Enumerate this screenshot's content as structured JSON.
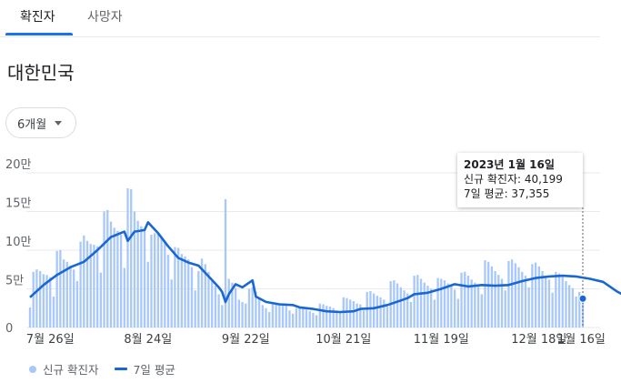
{
  "tabs": [
    {
      "label": "확진자",
      "active": true
    },
    {
      "label": "사망자",
      "active": false
    }
  ],
  "region_title": "대한민국",
  "period_select": {
    "label": "6개월"
  },
  "tooltip": {
    "date": "2023년 1월 16일",
    "new_cases": "신규 확진자: 40,199",
    "avg": "7일 평균: 37,355"
  },
  "legend": {
    "bars_label": "신규 확진자",
    "line_label": "7일 평균"
  },
  "colors": {
    "bar": "#a8c7fa",
    "line": "#1967d2",
    "grid": "#e8eaed",
    "accent": "#1a73e8"
  },
  "chart_data": {
    "type": "bar",
    "start_date": "2022-07-20",
    "y_tick_labels": [
      "0",
      "5만",
      "10만",
      "15만",
      "20만"
    ],
    "y_ticks": [
      0,
      50000,
      100000,
      150000,
      200000
    ],
    "ylim": [
      0,
      210000
    ],
    "x_tick_labels": [
      "7월 26일",
      "8월 24일",
      "9월 22일",
      "10월 21일",
      "11월 19일",
      "12월 18일",
      "1월 16일"
    ],
    "series": [
      {
        "name": "신규 확진자",
        "kind": "bar",
        "values": [
          26000,
          72000,
          75000,
          73000,
          69000,
          68000,
          65000,
          40000,
          99000,
          100000,
          88000,
          85000,
          80000,
          75000,
          60000,
          111000,
          119000,
          112000,
          108000,
          107000,
          105000,
          71000,
          150000,
          152000,
          137000,
          129000,
          125000,
          120000,
          77000,
          180000,
          179000,
          150000,
          138000,
          131000,
          125000,
          85000,
          120000,
          122000,
          121000,
          118000,
          109000,
          94000,
          62000,
          104000,
          103000,
          95000,
          92000,
          88000,
          78000,
          48000,
          73000,
          89000,
          82000,
          72000,
          60000,
          54000,
          43000,
          29000,
          166000,
          63000,
          58000,
          51000,
          36000,
          33000,
          31000,
          50000,
          52000,
          46000,
          38000,
          29000,
          25000,
          20000,
          32000,
          31000,
          30000,
          29000,
          28000,
          22000,
          18000,
          25000,
          26000,
          24000,
          23000,
          21000,
          19000,
          16000,
          31000,
          30000,
          28000,
          27000,
          25000,
          22000,
          20000,
          39000,
          38000,
          36000,
          34000,
          31000,
          30000,
          22000,
          46000,
          47000,
          44000,
          41000,
          39000,
          36000,
          27000,
          60000,
          61000,
          57000,
          52000,
          48000,
          44000,
          33000,
          67000,
          68000,
          63000,
          58000,
          54000,
          50000,
          36000,
          64000,
          63000,
          61000,
          57000,
          53000,
          49000,
          37000,
          71000,
          72000,
          67000,
          62000,
          58000,
          53000,
          43000,
          87000,
          85000,
          79000,
          73000,
          68000,
          63000,
          48000,
          86000,
          88000,
          83000,
          78000,
          72000,
          67000,
          52000,
          82000,
          84000,
          79000,
          73000,
          67000,
          62000,
          45000,
          72000,
          70000,
          65000,
          60000,
          55000,
          51000,
          40000,
          46000,
          40200
        ]
      },
      {
        "name": "7일 평균",
        "kind": "line",
        "points": [
          [
            0,
            39000
          ],
          [
            4,
            55000
          ],
          [
            8,
            68000
          ],
          [
            12,
            78000
          ],
          [
            16,
            85000
          ],
          [
            20,
            100000
          ],
          [
            24,
            117000
          ],
          [
            28,
            124000
          ],
          [
            29,
            112000
          ],
          [
            31,
            124000
          ],
          [
            34,
            126000
          ],
          [
            35,
            136000
          ],
          [
            38,
            122000
          ],
          [
            41,
            105000
          ],
          [
            44,
            90000
          ],
          [
            47,
            84000
          ],
          [
            50,
            80000
          ],
          [
            53,
            66000
          ],
          [
            56,
            52000
          ],
          [
            57,
            46000
          ],
          [
            58,
            33000
          ],
          [
            59,
            43000
          ],
          [
            61,
            56000
          ],
          [
            63,
            52000
          ],
          [
            66,
            61000
          ],
          [
            67,
            40000
          ],
          [
            70,
            33000
          ],
          [
            74,
            30000
          ],
          [
            78,
            29000
          ],
          [
            80,
            26000
          ],
          [
            84,
            24000
          ],
          [
            88,
            21000
          ],
          [
            92,
            20000
          ],
          [
            96,
            21000
          ],
          [
            98,
            24000
          ],
          [
            102,
            25000
          ],
          [
            106,
            29000
          ],
          [
            110,
            35000
          ],
          [
            112,
            38000
          ],
          [
            114,
            43000
          ],
          [
            118,
            45000
          ],
          [
            122,
            50000
          ],
          [
            126,
            56000
          ],
          [
            130,
            53000
          ],
          [
            134,
            55000
          ],
          [
            138,
            54000
          ],
          [
            142,
            55000
          ],
          [
            146,
            60000
          ],
          [
            150,
            64000
          ],
          [
            154,
            66000
          ],
          [
            158,
            67000
          ],
          [
            162,
            66000
          ],
          [
            166,
            63000
          ],
          [
            170,
            59000
          ],
          [
            172,
            53000
          ],
          [
            174,
            47000
          ],
          [
            178,
            37355
          ]
        ]
      }
    ]
  }
}
